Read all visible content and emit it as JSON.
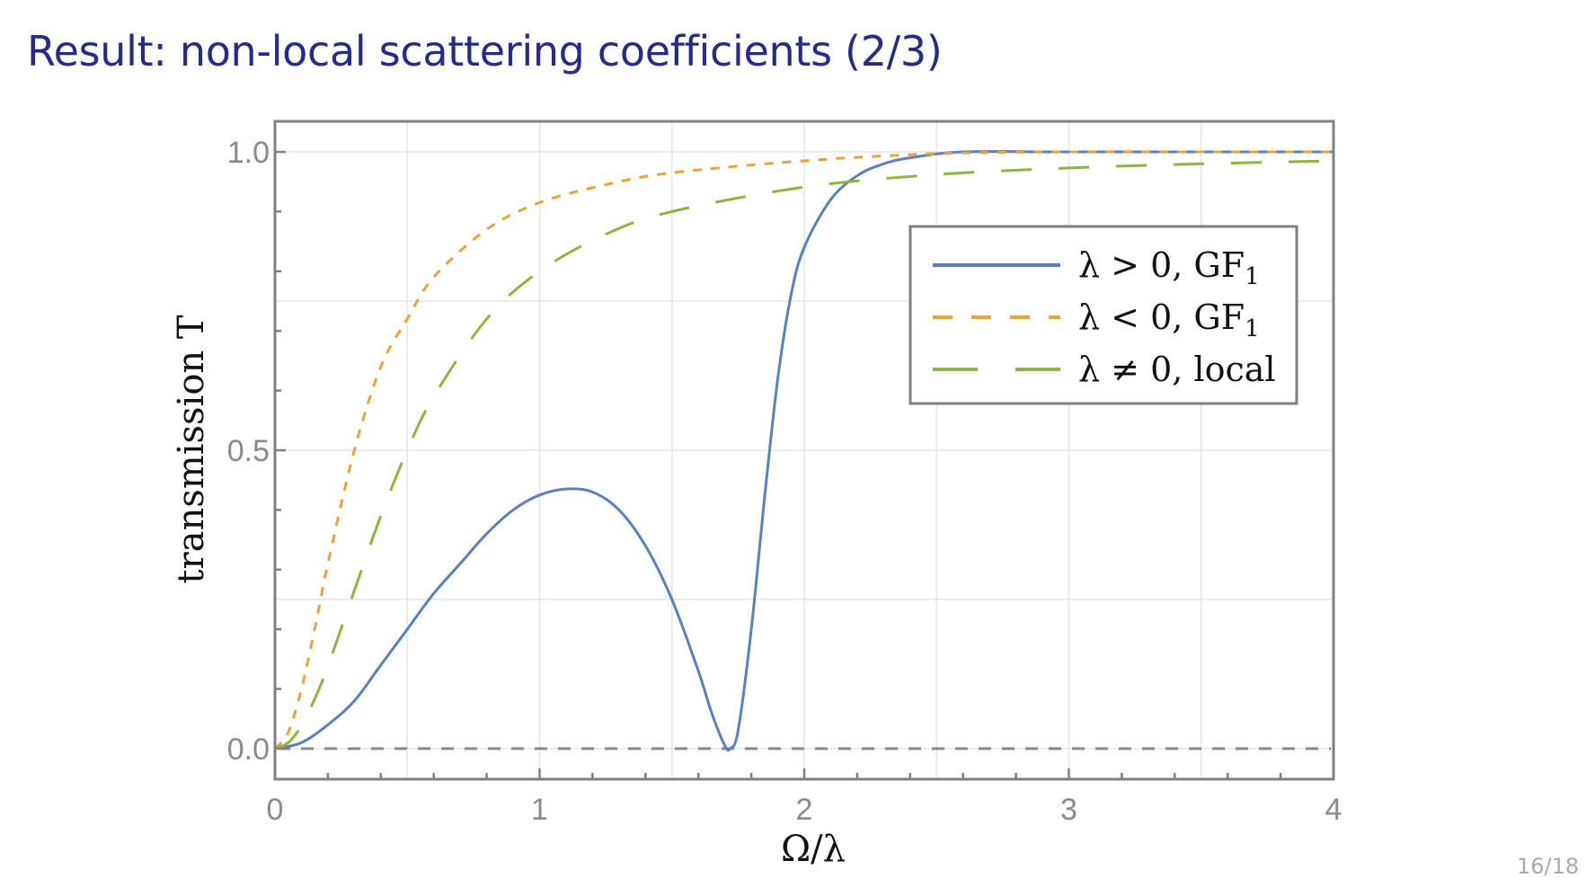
{
  "slide": {
    "title": "Result: non-local scattering coefficients (2/3)",
    "page": "16/18"
  },
  "chart_data": {
    "type": "line",
    "title": "",
    "xlabel": "Ω/λ",
    "ylabel": "transmission T",
    "xlim": [
      0,
      4
    ],
    "ylim": [
      -0.05,
      1.05
    ],
    "xticks": [
      0,
      1,
      2,
      3,
      4
    ],
    "xtick_labels": [
      "0",
      "1",
      "2",
      "3",
      "4"
    ],
    "yticks": [
      0.0,
      0.5,
      1.0
    ],
    "ytick_labels": [
      "0.0",
      "0.5",
      "1.0"
    ],
    "grid": true,
    "legend_position": "top-right",
    "reference_line": {
      "y": 0,
      "style": "dashed",
      "color": "#888888"
    },
    "series": [
      {
        "name": "λ > 0,  GF₁",
        "label": "λ > 0,  GF",
        "sub": "1",
        "color": "#5b7fbf",
        "style": "solid",
        "x": [
          0,
          0.1,
          0.2,
          0.3,
          0.4,
          0.5,
          0.6,
          0.7,
          0.8,
          0.9,
          1.0,
          1.1,
          1.2,
          1.3,
          1.4,
          1.5,
          1.6,
          1.65,
          1.7,
          1.72,
          1.75,
          1.8,
          1.85,
          1.9,
          1.95,
          2.0,
          2.1,
          2.2,
          2.3,
          2.4,
          2.6,
          3.0,
          4.0
        ],
        "y": [
          0,
          0.01,
          0.04,
          0.08,
          0.14,
          0.2,
          0.26,
          0.31,
          0.36,
          0.4,
          0.425,
          0.435,
          0.43,
          0.4,
          0.34,
          0.25,
          0.13,
          0.06,
          0.005,
          0,
          0.03,
          0.2,
          0.42,
          0.62,
          0.76,
          0.84,
          0.92,
          0.96,
          0.98,
          0.99,
          1.0,
          1.0,
          1.0
        ]
      },
      {
        "name": "λ < 0,  GF₁",
        "label": "λ < 0,  GF",
        "sub": "1",
        "color": "#e8a33c",
        "style": "dashed",
        "x": [
          0,
          0.05,
          0.1,
          0.15,
          0.2,
          0.3,
          0.4,
          0.5,
          0.6,
          0.8,
          1.0,
          1.25,
          1.5,
          2.0,
          2.5,
          3.0,
          3.5,
          4.0
        ],
        "y": [
          0,
          0.027,
          0.1,
          0.2,
          0.31,
          0.5,
          0.64,
          0.72,
          0.79,
          0.87,
          0.915,
          0.945,
          0.965,
          0.985,
          0.997,
          1.0,
          1.0,
          1.0
        ]
      },
      {
        "name": "λ ≠ 0,  local",
        "label": "λ ≠ 0,  local",
        "sub": "",
        "color": "#8db63c",
        "style": "long-dashed",
        "x": [
          0,
          0.05,
          0.1,
          0.15,
          0.2,
          0.3,
          0.4,
          0.5,
          0.6,
          0.8,
          1.0,
          1.25,
          1.5,
          2.0,
          2.5,
          3.0,
          3.5,
          4.0
        ],
        "y": [
          0,
          0.01,
          0.038,
          0.083,
          0.138,
          0.265,
          0.39,
          0.5,
          0.59,
          0.72,
          0.8,
          0.862,
          0.9,
          0.941,
          0.962,
          0.973,
          0.98,
          0.985
        ]
      }
    ]
  }
}
